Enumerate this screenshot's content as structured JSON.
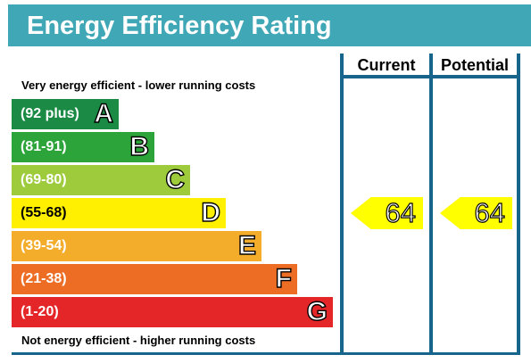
{
  "title": "Energy Efficiency Rating",
  "captions": {
    "top": "Very energy efficient - lower running costs",
    "bottom": "Not energy efficient - higher running costs"
  },
  "columns": {
    "current": "Current",
    "potential": "Potential"
  },
  "chart_data": {
    "type": "bar",
    "title": "Energy Efficiency Rating",
    "categories": [
      "A",
      "B",
      "C",
      "D",
      "E",
      "F",
      "G"
    ],
    "bands": [
      {
        "letter": "A",
        "range": "(92 plus)",
        "color": "#1a8a45"
      },
      {
        "letter": "B",
        "range": "(81-91)",
        "color": "#2da43a"
      },
      {
        "letter": "C",
        "range": "(69-80)",
        "color": "#9dcb3c"
      },
      {
        "letter": "D",
        "range": "(55-68)",
        "color": "#ffef00"
      },
      {
        "letter": "E",
        "range": "(39-54)",
        "color": "#f4ac2b"
      },
      {
        "letter": "F",
        "range": "(21-38)",
        "color": "#ed6d24"
      },
      {
        "letter": "G",
        "range": "(1-20)",
        "color": "#e52629"
      }
    ],
    "series": [
      {
        "name": "Current",
        "value": 64,
        "band": "D",
        "color": "#ffff00"
      },
      {
        "name": "Potential",
        "value": 64,
        "band": "D",
        "color": "#ffff00"
      }
    ]
  }
}
